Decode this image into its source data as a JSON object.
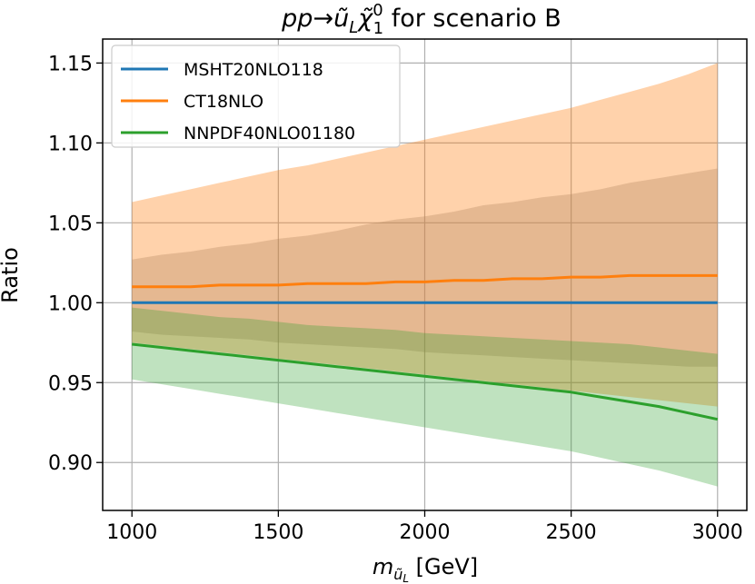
{
  "chart_data": {
    "type": "line",
    "title": "pp→ũLχ̃10 for scenario B",
    "title_parts": {
      "process": "pp→",
      "squark": "ũ",
      "squark_sub": "L",
      "neutralino": "χ̃",
      "neutralino_sub": "1",
      "neutralino_sup": "0",
      "suffix": " for scenario B"
    },
    "xlabel": "m_ũL [GeV]",
    "xlabel_parts": {
      "symbol": "m",
      "sub": "ũ",
      "subsub": "L",
      "unit": " [GeV]"
    },
    "ylabel": "Ratio",
    "xlim": [
      900,
      3100
    ],
    "ylim": [
      0.87,
      1.165
    ],
    "x_ticks": [
      1000,
      1500,
      2000,
      2500,
      3000
    ],
    "x_tick_labels": [
      "1000",
      "1500",
      "2000",
      "2500",
      "3000"
    ],
    "y_ticks": [
      0.9,
      0.95,
      1.0,
      1.05,
      1.1,
      1.15
    ],
    "y_tick_labels": [
      "0.90",
      "0.95",
      "1.00",
      "1.05",
      "1.10",
      "1.15"
    ],
    "grid": true,
    "legend_position": "top-left",
    "x": [
      1000,
      1100,
      1200,
      1300,
      1400,
      1500,
      1600,
      1700,
      1800,
      1900,
      2000,
      2100,
      2200,
      2300,
      2400,
      2500,
      2600,
      2700,
      2800,
      2900,
      3000
    ],
    "series": [
      {
        "name": "MSHT20NLO118",
        "color": "#1f77b4",
        "band_color": "#7f7f7f",
        "band_opacity": 0.3,
        "values": [
          1.0,
          1.0,
          1.0,
          1.0,
          1.0,
          1.0,
          1.0,
          1.0,
          1.0,
          1.0,
          1.0,
          1.0,
          1.0,
          1.0,
          1.0,
          1.0,
          1.0,
          1.0,
          1.0,
          1.0,
          1.0
        ],
        "upper": [
          1.027,
          1.03,
          1.032,
          1.035,
          1.037,
          1.04,
          1.042,
          1.045,
          1.049,
          1.052,
          1.054,
          1.057,
          1.061,
          1.063,
          1.066,
          1.068,
          1.071,
          1.075,
          1.078,
          1.081,
          1.084
        ],
        "lower": [
          0.982,
          0.98,
          0.979,
          0.978,
          0.977,
          0.975,
          0.974,
          0.973,
          0.972,
          0.971,
          0.969,
          0.968,
          0.967,
          0.966,
          0.965,
          0.964,
          0.963,
          0.962,
          0.961,
          0.96,
          0.96
        ]
      },
      {
        "name": "CT18NLO",
        "color": "#ff7f0e",
        "band_color": "#ff7f0e",
        "band_opacity": 0.35,
        "values": [
          1.01,
          1.01,
          1.01,
          1.011,
          1.011,
          1.011,
          1.012,
          1.012,
          1.012,
          1.013,
          1.013,
          1.014,
          1.014,
          1.015,
          1.015,
          1.016,
          1.016,
          1.017,
          1.017,
          1.017,
          1.017
        ],
        "upper": [
          1.063,
          1.067,
          1.071,
          1.075,
          1.079,
          1.083,
          1.086,
          1.09,
          1.094,
          1.098,
          1.102,
          1.106,
          1.11,
          1.114,
          1.118,
          1.122,
          1.127,
          1.132,
          1.137,
          1.143,
          1.15
        ],
        "lower": [
          0.975,
          0.973,
          0.971,
          0.969,
          0.967,
          0.965,
          0.963,
          0.961,
          0.959,
          0.957,
          0.955,
          0.953,
          0.951,
          0.949,
          0.947,
          0.945,
          0.943,
          0.941,
          0.939,
          0.937,
          0.935
        ]
      },
      {
        "name": "NNPDF40NLO01180",
        "color": "#2ca02c",
        "band_color": "#2ca02c",
        "band_opacity": 0.3,
        "values": [
          0.974,
          0.972,
          0.97,
          0.968,
          0.966,
          0.964,
          0.962,
          0.96,
          0.958,
          0.956,
          0.954,
          0.952,
          0.95,
          0.948,
          0.946,
          0.944,
          0.941,
          0.938,
          0.935,
          0.931,
          0.927
        ],
        "upper": [
          0.997,
          0.995,
          0.993,
          0.991,
          0.99,
          0.988,
          0.986,
          0.985,
          0.984,
          0.983,
          0.981,
          0.98,
          0.979,
          0.978,
          0.977,
          0.976,
          0.975,
          0.974,
          0.972,
          0.97,
          0.968
        ],
        "lower": [
          0.952,
          0.949,
          0.946,
          0.943,
          0.94,
          0.937,
          0.934,
          0.931,
          0.928,
          0.925,
          0.922,
          0.919,
          0.916,
          0.913,
          0.91,
          0.907,
          0.903,
          0.899,
          0.895,
          0.89,
          0.885
        ]
      }
    ]
  }
}
